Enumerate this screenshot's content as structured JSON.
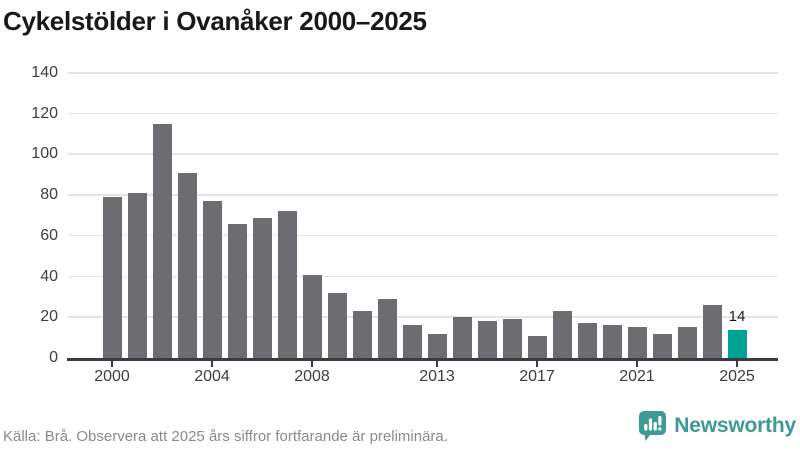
{
  "title": "Cykelstölder i Ovanåker 2000–2025",
  "footer": {
    "source_text": "Källa: Brå. Observera att 2025 års siffror fortfarande är preliminära.",
    "brand": "Newsworthy"
  },
  "colors": {
    "bar": "#6d6c71",
    "bar_highlight": "#00a295",
    "gridline": "#e4e4e4",
    "axis": "#3b3b41",
    "title_text": "#191919",
    "axis_label": "#3d3d3d",
    "footer_text": "#8a8a8a",
    "brand_teal": "#3e9a94"
  },
  "chart_data": {
    "type": "bar",
    "title": "Cykelstölder i Ovanåker 2000–2025",
    "x": [
      2000,
      2001,
      2002,
      2003,
      2004,
      2005,
      2006,
      2007,
      2008,
      2009,
      2010,
      2011,
      2012,
      2013,
      2014,
      2015,
      2016,
      2017,
      2018,
      2019,
      2020,
      2021,
      2022,
      2023,
      2024,
      2025
    ],
    "values": [
      79,
      81,
      115,
      91,
      77,
      66,
      69,
      72,
      41,
      32,
      23,
      29,
      16,
      12,
      20,
      18,
      19,
      11,
      23,
      17,
      16,
      15,
      12,
      15,
      26,
      14
    ],
    "highlight_index": 25,
    "highlight_label": "14",
    "xlabel": "",
    "ylabel": "",
    "ylim": [
      0,
      140
    ],
    "yticks": [
      0,
      20,
      40,
      60,
      80,
      100,
      120,
      140
    ],
    "xticks": [
      {
        "index": 0,
        "label": "2000"
      },
      {
        "index": 4,
        "label": "2004"
      },
      {
        "index": 8,
        "label": "2008"
      },
      {
        "index": 13,
        "label": "2013"
      },
      {
        "index": 17,
        "label": "2017"
      },
      {
        "index": 21,
        "label": "2021"
      },
      {
        "index": 25,
        "label": "2025"
      }
    ],
    "grid": true,
    "legend": false
  }
}
